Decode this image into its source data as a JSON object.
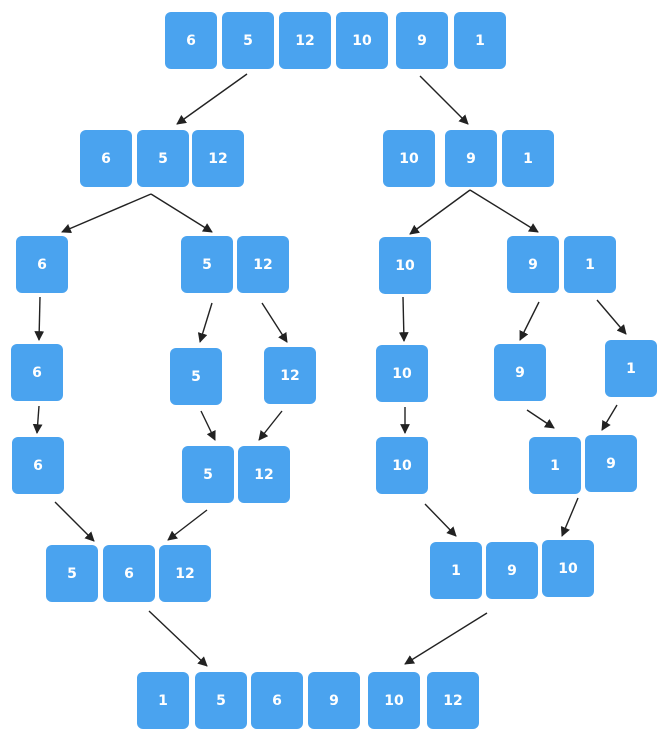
{
  "colors": {
    "box_fill": "#4aa3ef",
    "box_text": "#ffffff",
    "arrow": "#222222"
  },
  "groups": {
    "root": [
      "6",
      "5",
      "12",
      "10",
      "9",
      "1"
    ],
    "left_half": [
      "6",
      "5",
      "12"
    ],
    "right_half": [
      "10",
      "9",
      "1"
    ],
    "l_single_6": [
      "6"
    ],
    "l_pair": [
      "5",
      "12"
    ],
    "r_single_10": [
      "10"
    ],
    "r_pair": [
      "9",
      "1"
    ],
    "l6_a": [
      "6"
    ],
    "l5": [
      "5"
    ],
    "l12": [
      "12"
    ],
    "r10_a": [
      "10"
    ],
    "r9": [
      "9"
    ],
    "r1": [
      "1"
    ],
    "l6_b": [
      "6"
    ],
    "l_pair_merged": [
      "5",
      "12"
    ],
    "r10_b": [
      "10"
    ],
    "r_pair_merged": [
      "1",
      "9"
    ],
    "left_merged": [
      "5",
      "6",
      "12"
    ],
    "right_merged": [
      "1",
      "9",
      "10"
    ],
    "final": [
      "1",
      "5",
      "6",
      "9",
      "10",
      "12"
    ]
  }
}
